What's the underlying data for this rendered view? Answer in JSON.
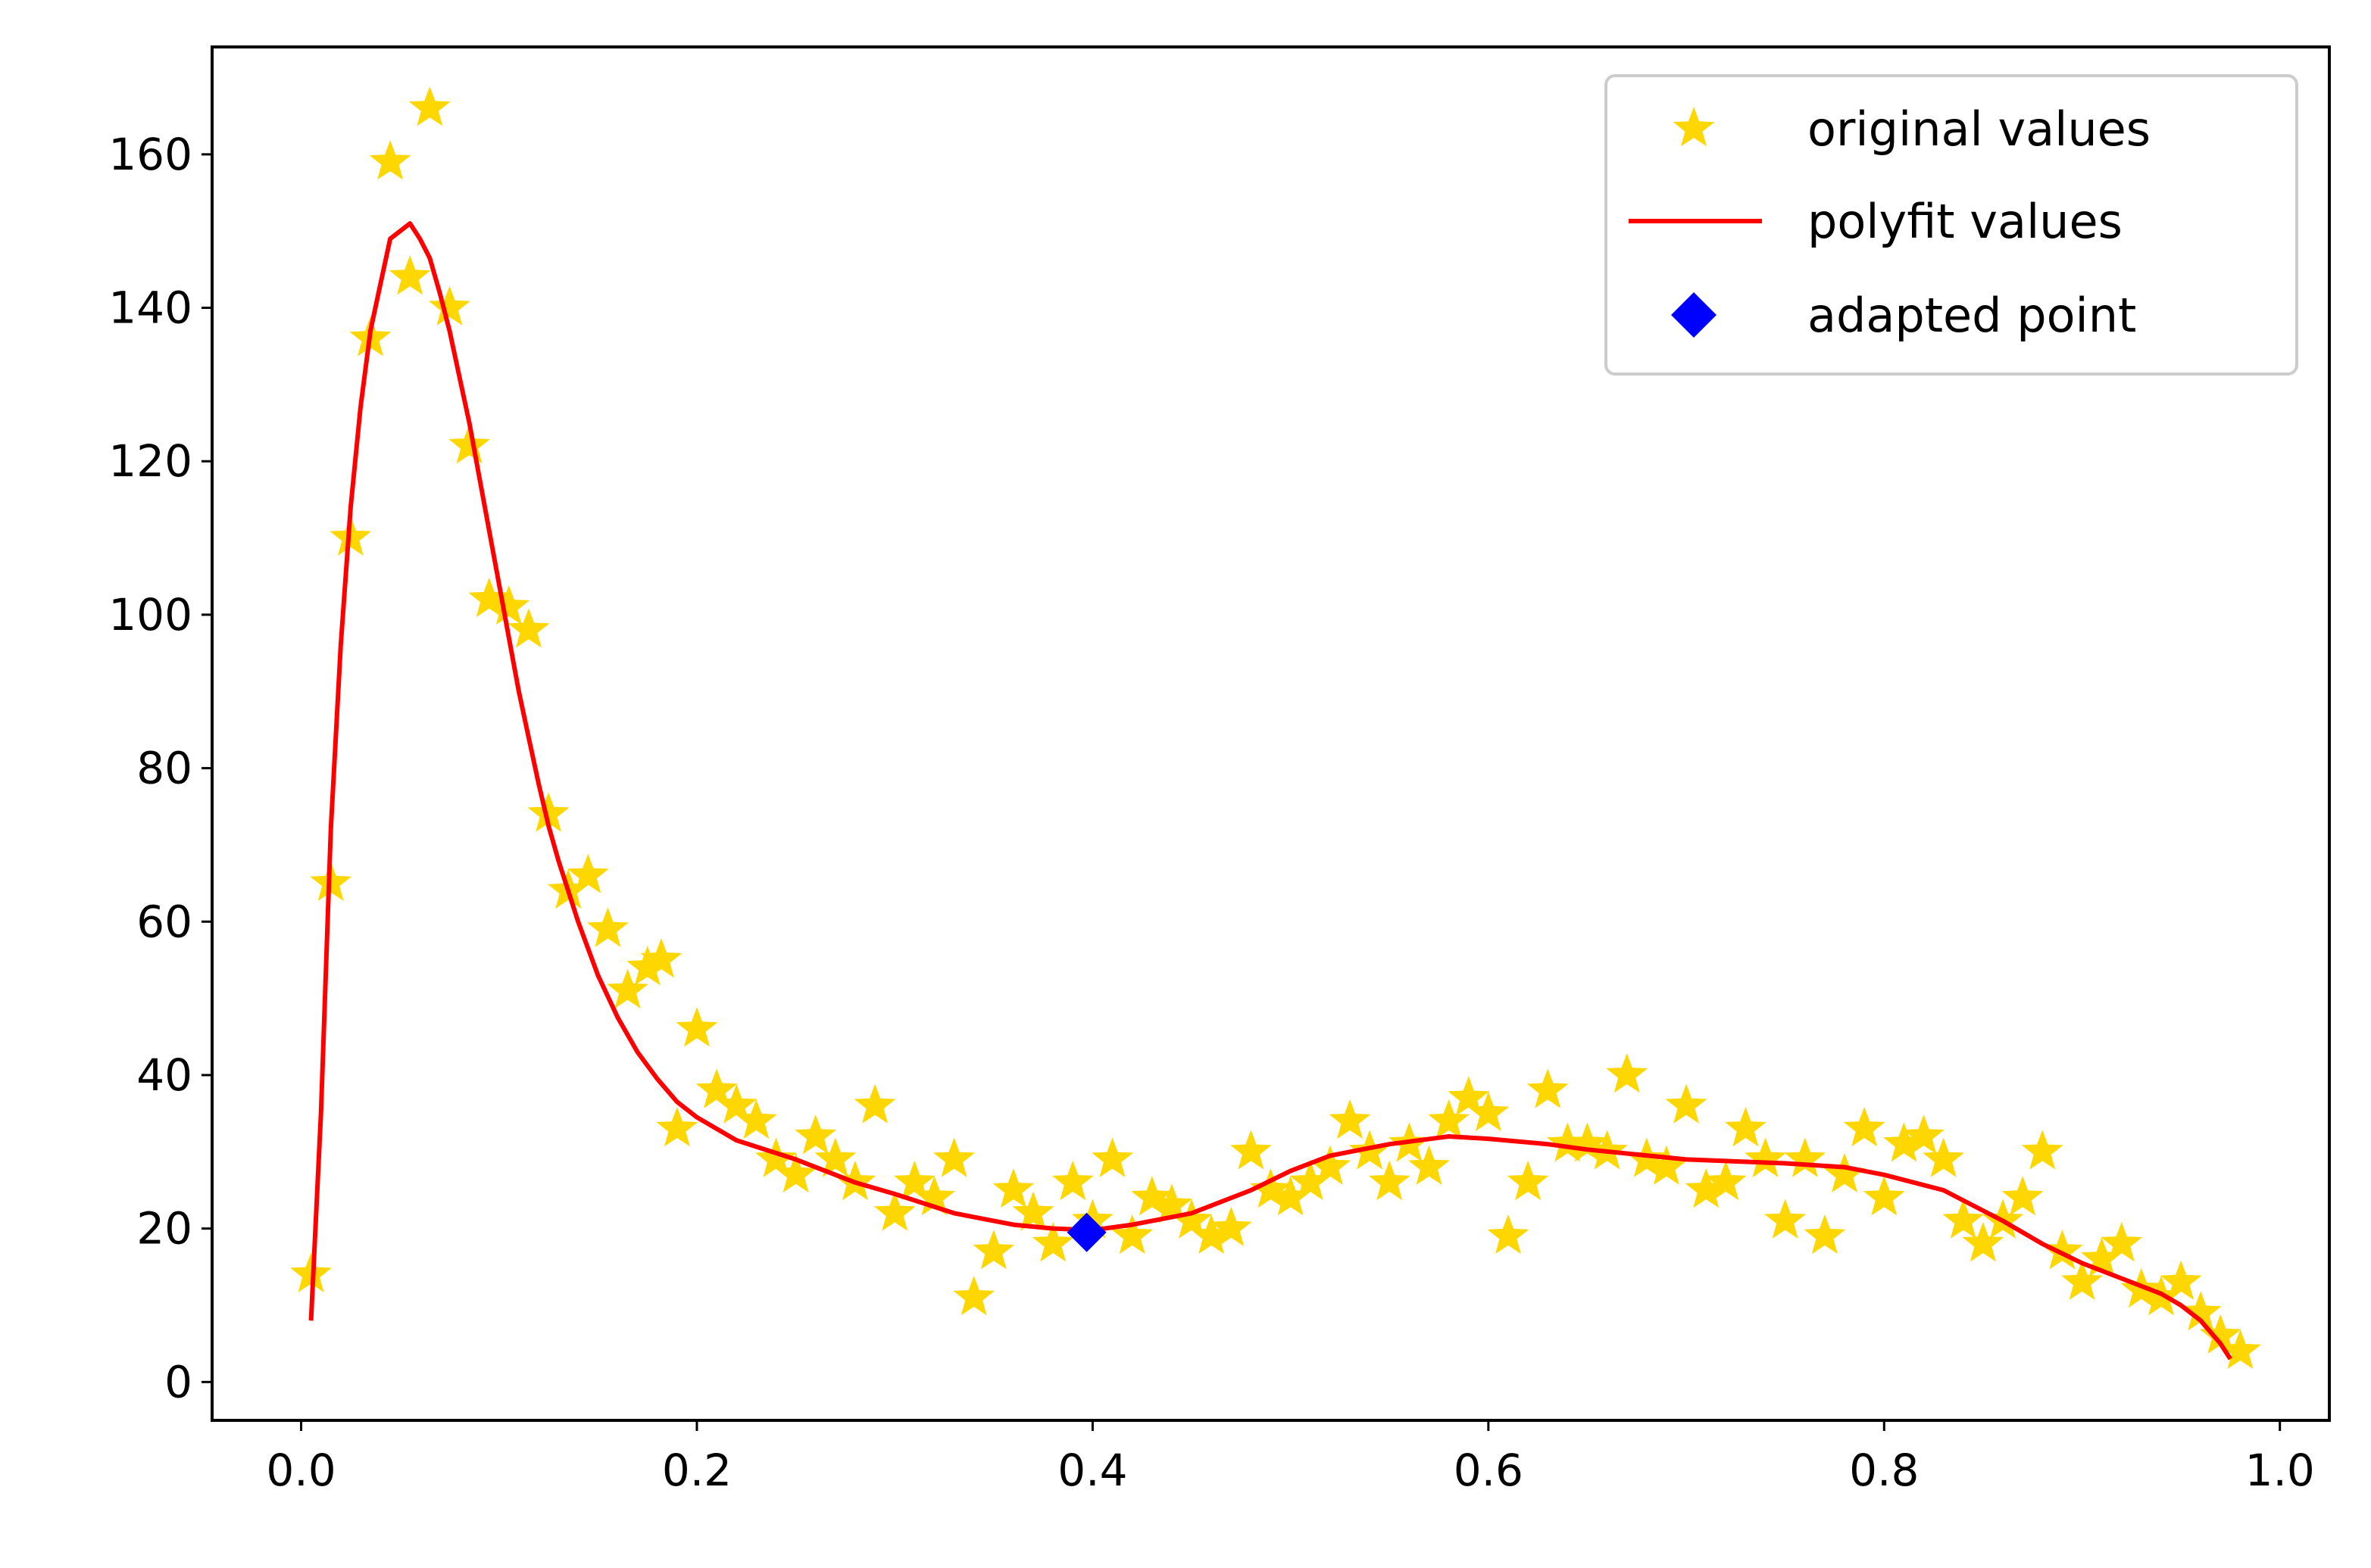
{
  "chart_data": {
    "type": "scatter",
    "title": "",
    "xlabel": "",
    "ylabel": "",
    "xlim": [
      -0.045,
      1.025
    ],
    "ylim": [
      -5,
      174
    ],
    "x_ticks": [
      0.0,
      0.2,
      0.4,
      0.6,
      0.8,
      1.0
    ],
    "x_tick_labels": [
      "0.0",
      "0.2",
      "0.4",
      "0.6",
      "0.8",
      "1.0"
    ],
    "y_ticks": [
      0,
      20,
      40,
      60,
      80,
      100,
      120,
      140,
      160
    ],
    "y_tick_labels": [
      "0",
      "20",
      "40",
      "60",
      "80",
      "100",
      "120",
      "140",
      "160"
    ],
    "grid": false,
    "legend_position": "top-right",
    "series": [
      {
        "name": "original values",
        "kind": "scatter",
        "marker": "star",
        "color": "#FFD700",
        "points": [
          [
            0.005,
            14
          ],
          [
            0.015,
            65
          ],
          [
            0.025,
            110
          ],
          [
            0.035,
            136
          ],
          [
            0.045,
            159
          ],
          [
            0.055,
            144
          ],
          [
            0.065,
            166
          ],
          [
            0.075,
            140
          ],
          [
            0.085,
            122
          ],
          [
            0.095,
            102
          ],
          [
            0.105,
            101
          ],
          [
            0.115,
            98
          ],
          [
            0.125,
            74
          ],
          [
            0.135,
            64
          ],
          [
            0.145,
            66
          ],
          [
            0.155,
            59
          ],
          [
            0.165,
            51
          ],
          [
            0.175,
            54
          ],
          [
            0.182,
            55
          ],
          [
            0.19,
            33
          ],
          [
            0.2,
            46
          ],
          [
            0.21,
            38
          ],
          [
            0.22,
            36
          ],
          [
            0.23,
            34
          ],
          [
            0.24,
            29
          ],
          [
            0.25,
            27
          ],
          [
            0.26,
            32
          ],
          [
            0.27,
            29
          ],
          [
            0.28,
            26
          ],
          [
            0.29,
            36
          ],
          [
            0.3,
            22
          ],
          [
            0.31,
            26
          ],
          [
            0.32,
            24
          ],
          [
            0.33,
            29
          ],
          [
            0.34,
            11
          ],
          [
            0.35,
            17
          ],
          [
            0.36,
            25
          ],
          [
            0.37,
            22
          ],
          [
            0.38,
            18
          ],
          [
            0.39,
            26
          ],
          [
            0.4,
            21
          ],
          [
            0.41,
            29
          ],
          [
            0.42,
            19
          ],
          [
            0.43,
            24
          ],
          [
            0.44,
            23
          ],
          [
            0.45,
            21
          ],
          [
            0.46,
            19
          ],
          [
            0.47,
            20
          ],
          [
            0.48,
            30
          ],
          [
            0.49,
            25
          ],
          [
            0.5,
            24
          ],
          [
            0.51,
            26
          ],
          [
            0.52,
            28
          ],
          [
            0.53,
            34
          ],
          [
            0.54,
            30
          ],
          [
            0.55,
            26
          ],
          [
            0.56,
            31
          ],
          [
            0.57,
            28
          ],
          [
            0.58,
            34
          ],
          [
            0.59,
            37
          ],
          [
            0.6,
            35
          ],
          [
            0.61,
            19
          ],
          [
            0.62,
            26
          ],
          [
            0.63,
            38
          ],
          [
            0.64,
            31
          ],
          [
            0.65,
            31
          ],
          [
            0.66,
            30
          ],
          [
            0.67,
            40
          ],
          [
            0.68,
            29
          ],
          [
            0.69,
            28
          ],
          [
            0.7,
            36
          ],
          [
            0.71,
            25
          ],
          [
            0.72,
            26
          ],
          [
            0.73,
            33
          ],
          [
            0.74,
            29
          ],
          [
            0.75,
            21
          ],
          [
            0.76,
            29
          ],
          [
            0.77,
            19
          ],
          [
            0.78,
            27
          ],
          [
            0.79,
            33
          ],
          [
            0.8,
            24
          ],
          [
            0.81,
            31
          ],
          [
            0.82,
            32
          ],
          [
            0.83,
            29
          ],
          [
            0.84,
            21
          ],
          [
            0.85,
            18
          ],
          [
            0.86,
            21
          ],
          [
            0.87,
            24
          ],
          [
            0.88,
            30
          ],
          [
            0.89,
            17
          ],
          [
            0.9,
            13
          ],
          [
            0.91,
            16
          ],
          [
            0.92,
            18
          ],
          [
            0.93,
            12
          ],
          [
            0.94,
            11
          ],
          [
            0.95,
            13
          ],
          [
            0.96,
            9
          ],
          [
            0.97,
            6
          ],
          [
            0.98,
            4
          ]
        ]
      },
      {
        "name": "polyfit values",
        "kind": "line",
        "color": "#FF0000",
        "points": [
          [
            0.005,
            8
          ],
          [
            0.01,
            35
          ],
          [
            0.015,
            72
          ],
          [
            0.02,
            96
          ],
          [
            0.025,
            114
          ],
          [
            0.03,
            127
          ],
          [
            0.035,
            137
          ],
          [
            0.04,
            143
          ],
          [
            0.045,
            149
          ],
          [
            0.05,
            150
          ],
          [
            0.055,
            151
          ],
          [
            0.06,
            149
          ],
          [
            0.065,
            146.5
          ],
          [
            0.07,
            142
          ],
          [
            0.075,
            137
          ],
          [
            0.08,
            131
          ],
          [
            0.085,
            125
          ],
          [
            0.09,
            118
          ],
          [
            0.095,
            111
          ],
          [
            0.1,
            104
          ],
          [
            0.105,
            97
          ],
          [
            0.11,
            90
          ],
          [
            0.115,
            84
          ],
          [
            0.12,
            78
          ],
          [
            0.125,
            72.5
          ],
          [
            0.13,
            68
          ],
          [
            0.14,
            60
          ],
          [
            0.15,
            53
          ],
          [
            0.16,
            47.5
          ],
          [
            0.17,
            43
          ],
          [
            0.18,
            39.5
          ],
          [
            0.19,
            36.5
          ],
          [
            0.2,
            34.5
          ],
          [
            0.22,
            31.5
          ],
          [
            0.25,
            29
          ],
          [
            0.28,
            26
          ],
          [
            0.3,
            24.5
          ],
          [
            0.33,
            22
          ],
          [
            0.36,
            20.5
          ],
          [
            0.38,
            20
          ],
          [
            0.4,
            19.8
          ],
          [
            0.42,
            20.5
          ],
          [
            0.45,
            22
          ],
          [
            0.48,
            25
          ],
          [
            0.5,
            27.5
          ],
          [
            0.52,
            29.5
          ],
          [
            0.55,
            31
          ],
          [
            0.58,
            32
          ],
          [
            0.6,
            31.7
          ],
          [
            0.63,
            31
          ],
          [
            0.65,
            30.3
          ],
          [
            0.7,
            29
          ],
          [
            0.75,
            28.5
          ],
          [
            0.78,
            28
          ],
          [
            0.8,
            27
          ],
          [
            0.83,
            25
          ],
          [
            0.86,
            21
          ],
          [
            0.88,
            18
          ],
          [
            0.9,
            15.5
          ],
          [
            0.92,
            13.5
          ],
          [
            0.94,
            11.5
          ],
          [
            0.95,
            10
          ],
          [
            0.96,
            8
          ],
          [
            0.97,
            5
          ],
          [
            0.975,
            3
          ]
        ]
      },
      {
        "name": "adapted point",
        "kind": "scatter",
        "marker": "diamond",
        "color": "#0000FF",
        "points": [
          [
            0.397,
            19.5
          ]
        ]
      }
    ]
  }
}
